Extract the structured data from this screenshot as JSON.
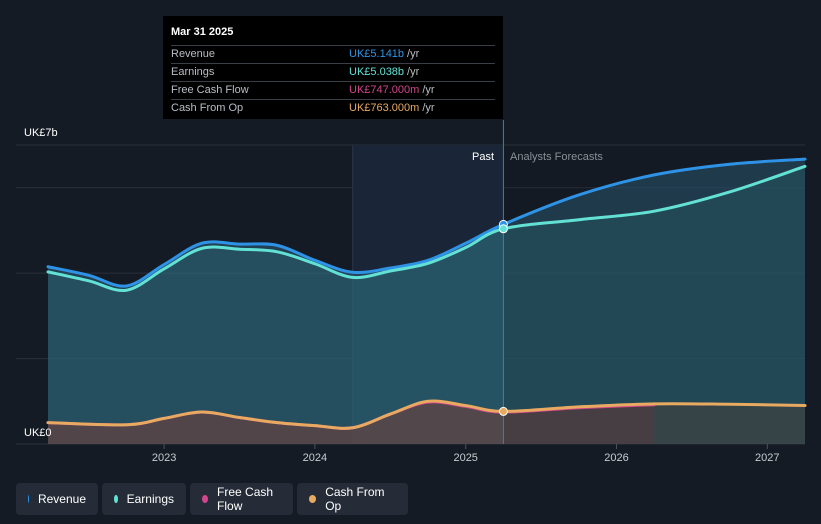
{
  "chart_data": {
    "type": "area",
    "title": "",
    "y_axis": {
      "max_label": "UK£7b",
      "min_label": "UK£0",
      "ylim": [
        0,
        7
      ]
    },
    "x_ticks": [
      "2023",
      "2024",
      "2025",
      "2026",
      "2027"
    ],
    "xlim": [
      2022.23,
      2027.25
    ],
    "period_labels": {
      "past": "Past",
      "forecast": "Analysts Forecasts"
    },
    "highlight_start": 2024.25,
    "divider_x": 2025.25,
    "series": [
      {
        "name": "Revenue",
        "color": "#2e93e6",
        "area": true,
        "points": [
          [
            2022.23,
            4.15
          ],
          [
            2022.5,
            3.95
          ],
          [
            2022.75,
            3.7
          ],
          [
            2023.0,
            4.2
          ],
          [
            2023.25,
            4.7
          ],
          [
            2023.5,
            4.68
          ],
          [
            2023.75,
            4.65
          ],
          [
            2024.0,
            4.3
          ],
          [
            2024.25,
            4.02
          ],
          [
            2024.5,
            4.12
          ],
          [
            2024.75,
            4.3
          ],
          [
            2025.0,
            4.7
          ],
          [
            2025.25,
            5.141
          ],
          [
            2025.75,
            5.83
          ],
          [
            2026.25,
            6.3
          ],
          [
            2026.75,
            6.55
          ],
          [
            2027.25,
            6.67
          ]
        ]
      },
      {
        "name": "Earnings",
        "color": "#62e1d4",
        "area": true,
        "points": [
          [
            2022.23,
            4.03
          ],
          [
            2022.5,
            3.82
          ],
          [
            2022.75,
            3.6
          ],
          [
            2023.0,
            4.1
          ],
          [
            2023.25,
            4.58
          ],
          [
            2023.5,
            4.56
          ],
          [
            2023.75,
            4.5
          ],
          [
            2024.0,
            4.22
          ],
          [
            2024.25,
            3.9
          ],
          [
            2024.5,
            4.05
          ],
          [
            2024.75,
            4.23
          ],
          [
            2025.0,
            4.6
          ],
          [
            2025.25,
            5.038
          ],
          [
            2025.75,
            5.25
          ],
          [
            2026.25,
            5.45
          ],
          [
            2026.75,
            5.9
          ],
          [
            2027.25,
            6.5
          ]
        ]
      },
      {
        "name": "Free Cash Flow",
        "color": "#d2468b",
        "area": true,
        "points": [
          [
            2022.23,
            0.5
          ],
          [
            2022.75,
            0.45
          ],
          [
            2023.0,
            0.6
          ],
          [
            2023.25,
            0.75
          ],
          [
            2023.5,
            0.62
          ],
          [
            2023.75,
            0.5
          ],
          [
            2024.0,
            0.43
          ],
          [
            2024.25,
            0.38
          ],
          [
            2024.5,
            0.7
          ],
          [
            2024.75,
            0.98
          ],
          [
            2025.0,
            0.88
          ],
          [
            2025.25,
            0.747
          ],
          [
            2025.75,
            0.85
          ],
          [
            2026.25,
            0.92
          ]
        ]
      },
      {
        "name": "Cash From Op",
        "color": "#e8a961",
        "area": true,
        "points": [
          [
            2022.23,
            0.5
          ],
          [
            2022.75,
            0.45
          ],
          [
            2023.0,
            0.6
          ],
          [
            2023.25,
            0.75
          ],
          [
            2023.5,
            0.62
          ],
          [
            2023.75,
            0.5
          ],
          [
            2024.0,
            0.43
          ],
          [
            2024.25,
            0.38
          ],
          [
            2024.5,
            0.7
          ],
          [
            2024.75,
            1.0
          ],
          [
            2025.0,
            0.9
          ],
          [
            2025.25,
            0.763
          ],
          [
            2025.75,
            0.87
          ],
          [
            2026.25,
            0.94
          ],
          [
            2026.75,
            0.93
          ],
          [
            2027.25,
            0.9
          ]
        ]
      }
    ]
  },
  "tooltip": {
    "date": "Mar 31 2025",
    "unit": "/yr",
    "rows": [
      {
        "label": "Revenue",
        "value": "UK£5.141b",
        "color": "#2e93e6"
      },
      {
        "label": "Earnings",
        "value": "UK£5.038b",
        "color": "#62e1d4"
      },
      {
        "label": "Free Cash Flow",
        "value": "UK£747.000m",
        "color": "#d2468b"
      },
      {
        "label": "Cash From Op",
        "value": "UK£763.000m",
        "color": "#e8a961"
      }
    ]
  },
  "legend": [
    {
      "label": "Revenue",
      "color": "#2e93e6"
    },
    {
      "label": "Earnings",
      "color": "#62e1d4"
    },
    {
      "label": "Free Cash Flow",
      "color": "#d2468b"
    },
    {
      "label": "Cash From Op",
      "color": "#e8a961"
    }
  ]
}
